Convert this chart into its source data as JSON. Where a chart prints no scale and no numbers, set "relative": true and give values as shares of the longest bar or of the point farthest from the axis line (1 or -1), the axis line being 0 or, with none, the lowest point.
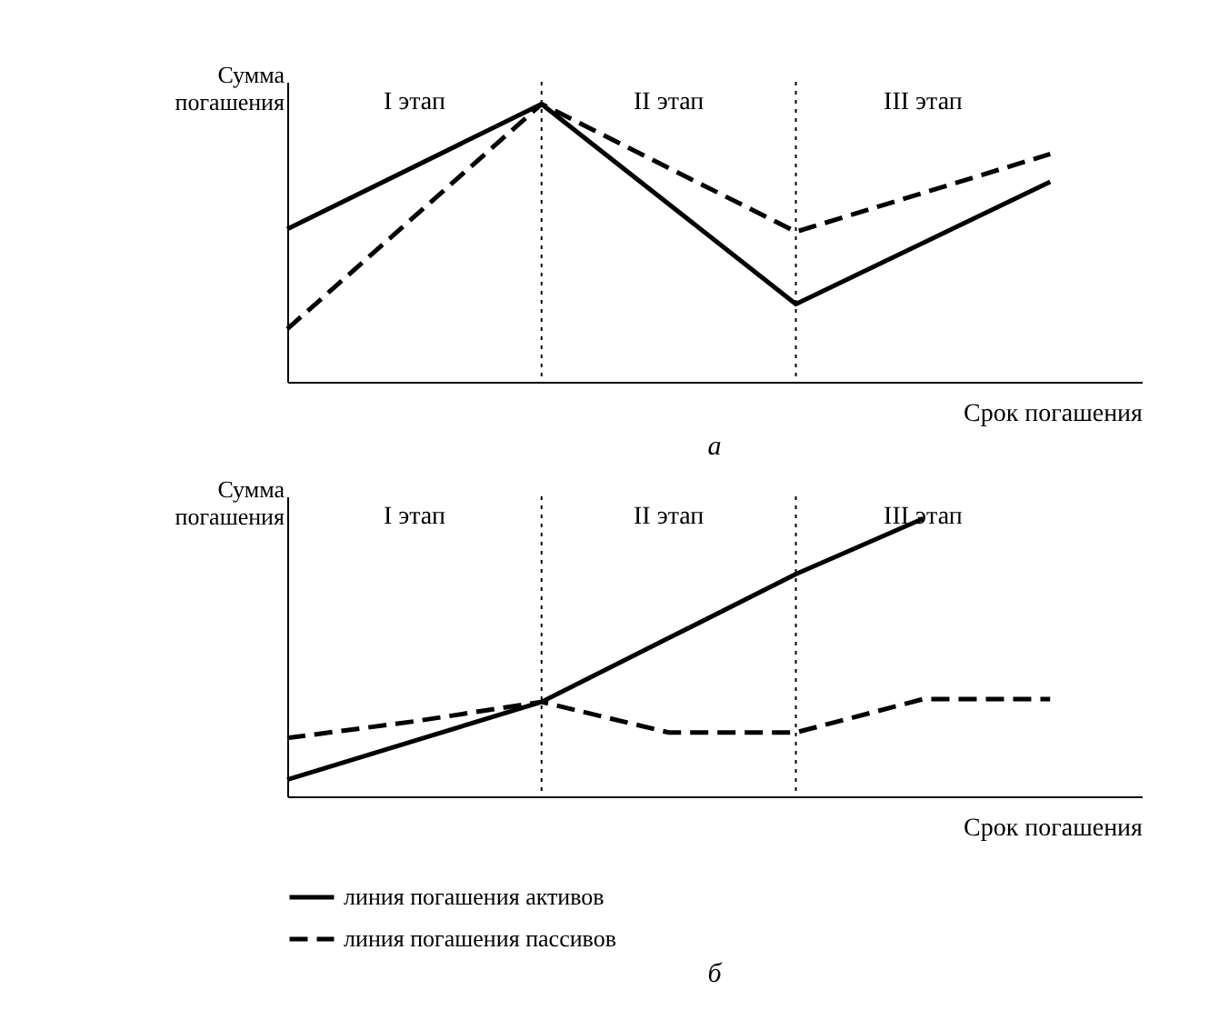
{
  "chart_data": [
    {
      "type": "line",
      "title": "а",
      "xlabel": "Срок погашения",
      "ylabel": "Сумма погашения",
      "relative": true,
      "grid": false,
      "legend": false,
      "categories": [
        null,
        null,
        null,
        null
      ],
      "series": [
        {
          "color": "#000000",
          "line_style": "solid",
          "values": [
            0.55,
            1.0,
            0.28,
            0.72
          ]
        },
        {
          "color": "#000000",
          "line_style": "dashed",
          "values": [
            0.19,
            1.0,
            0.54,
            0.82
          ]
        }
      ],
      "annotations": [
        "I этап",
        "II этап",
        "III этап"
      ]
    },
    {
      "type": "line",
      "title": "б",
      "xlabel": "Срок погашения",
      "ylabel": "Сумма погашения",
      "relative": true,
      "grid": false,
      "legend": "bottom",
      "categories": [
        null,
        null,
        null,
        null,
        null,
        null,
        null
      ],
      "series": [
        {
          "name": "линия погашения активов",
          "color": "#000000",
          "line_style": "solid",
          "values": [
            0.06,
            0.2,
            0.34,
            0.57,
            0.8,
            1.0,
            null
          ]
        },
        {
          "name": "линия погашения пассивов",
          "color": "#000000",
          "line_style": "dashed",
          "values": [
            0.21,
            0.27,
            0.34,
            0.23,
            0.23,
            0.35,
            0.35
          ]
        }
      ],
      "annotations": [
        "I этап",
        "II этап",
        "III этап"
      ]
    }
  ]
}
